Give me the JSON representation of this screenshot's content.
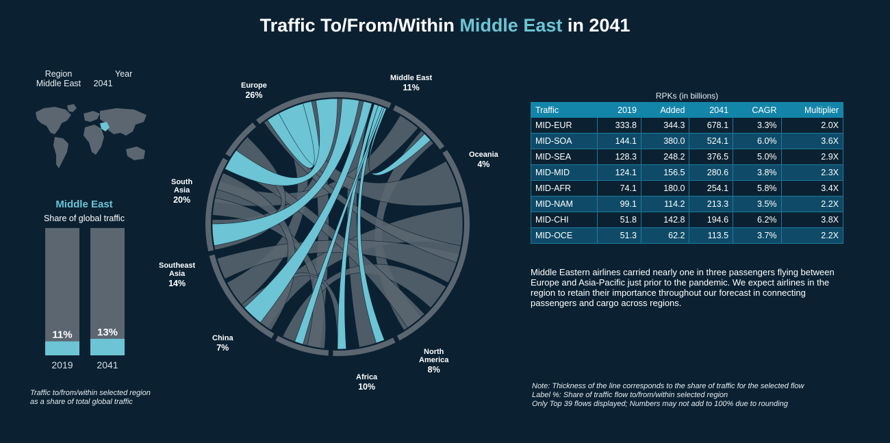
{
  "title": {
    "prefix": "Traffic To/From/Within ",
    "highlight": "Middle East",
    "suffix": " in 2041"
  },
  "filters": {
    "region_label": "Region",
    "region_value": "Middle East",
    "year_label": "Year",
    "year_value": "2041"
  },
  "share_panel": {
    "region": "Middle East",
    "subtitle": "Share of global traffic",
    "footnote_line1": "Traffic to/from/within selected region",
    "footnote_line2": "as a share of total global traffic"
  },
  "colors": {
    "background": "#0b2132",
    "highlight": "#6cc4d4",
    "grey": "#5b6671",
    "header": "#1385a8"
  },
  "chart_data": [
    {
      "type": "bar",
      "categories": [
        "2019",
        "2041"
      ],
      "values": [
        11,
        13
      ],
      "value_labels": [
        "11%",
        "13%"
      ],
      "ylim": [
        0,
        100
      ]
    },
    {
      "type": "chord",
      "segments": [
        {
          "name": "Middle East",
          "label_lines": [
            "Middle East"
          ],
          "pct": "11%"
        },
        {
          "name": "Oceania",
          "label_lines": [
            "Oceania"
          ],
          "pct": "4%"
        },
        {
          "name": "North America",
          "label_lines": [
            "North",
            "America"
          ],
          "pct": "8%"
        },
        {
          "name": "Africa",
          "label_lines": [
            "Africa"
          ],
          "pct": "10%"
        },
        {
          "name": "China",
          "label_lines": [
            "China"
          ],
          "pct": "7%"
        },
        {
          "name": "Southeast Asia",
          "label_lines": [
            "Southeast",
            "Asia"
          ],
          "pct": "14%"
        },
        {
          "name": "South Asia",
          "label_lines": [
            "South",
            "Asia"
          ],
          "pct": "20%"
        },
        {
          "name": "Europe",
          "label_lines": [
            "Europe"
          ],
          "pct": "26%"
        }
      ]
    }
  ],
  "table": {
    "caption": "RPKs (in billions)",
    "headers": [
      "Traffic",
      "2019",
      "Added",
      "2041",
      "CAGR",
      "Multiplier"
    ],
    "rows": [
      [
        "MID-EUR",
        "333.8",
        "344.3",
        "678.1",
        "3.3%",
        "2.0X"
      ],
      [
        "MID-SOA",
        "144.1",
        "380.0",
        "524.1",
        "6.0%",
        "3.6X"
      ],
      [
        "MID-SEA",
        "128.3",
        "248.2",
        "376.5",
        "5.0%",
        "2.9X"
      ],
      [
        "MID-MID",
        "124.1",
        "156.5",
        "280.6",
        "3.8%",
        "2.3X"
      ],
      [
        "MID-AFR",
        "74.1",
        "180.0",
        "254.1",
        "5.8%",
        "3.4X"
      ],
      [
        "MID-NAM",
        "99.1",
        "114.2",
        "213.3",
        "3.5%",
        "2.2X"
      ],
      [
        "MID-CHI",
        "51.8",
        "142.8",
        "194.6",
        "6.2%",
        "3.8X"
      ],
      [
        "MID-OCE",
        "51.3",
        "62.2",
        "113.5",
        "3.7%",
        "2.2X"
      ]
    ]
  },
  "blurb": "Middle Eastern airlines carried nearly one in three passengers flying between Europe and Asia-Pacific just prior to the pandemic. We expect airlines in the region to retain their importance throughout our forecast in connecting passengers and cargo across regions.",
  "notes": [
    "Note: Thickness of the line corresponds to the share of traffic for the selected flow",
    "Label %: Share of traffic flow to/from/within selected region",
    "Only Top 39 flows displayed; Numbers may not add to 100% due to rounding"
  ]
}
